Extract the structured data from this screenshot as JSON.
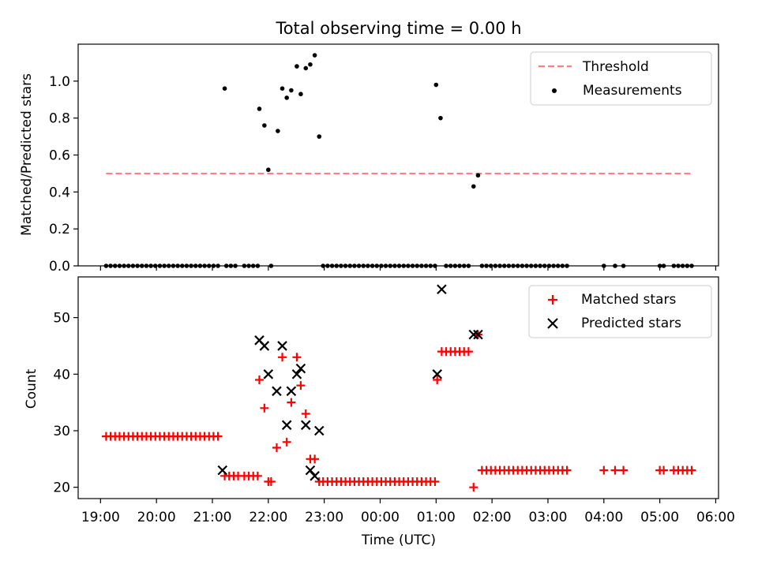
{
  "chart_data": [
    {
      "type": "scatter",
      "title": "Total observing time = 0.00 h",
      "ylabel": "Matched/Predicted stars",
      "xlabel": "",
      "ylim": [
        0,
        1.2
      ],
      "yticks": [
        "0.0",
        "0.2",
        "0.4",
        "0.6",
        "0.8",
        "1.0"
      ],
      "legend_position": "upper-right",
      "series": [
        {
          "name": "Threshold",
          "kind": "line",
          "style": "dashed",
          "color": "#ff7f7f",
          "points": [
            [
              19.1,
              0.5
            ],
            [
              29.55,
              0.5
            ]
          ]
        },
        {
          "name": "Measurements",
          "kind": "scatter",
          "marker": "dot",
          "color": "#000000",
          "points": [
            [
              19.1,
              0
            ],
            [
              19.18,
              0
            ],
            [
              19.26,
              0
            ],
            [
              19.34,
              0
            ],
            [
              19.42,
              0
            ],
            [
              19.5,
              0
            ],
            [
              19.58,
              0
            ],
            [
              19.66,
              0
            ],
            [
              19.74,
              0
            ],
            [
              19.82,
              0
            ],
            [
              19.9,
              0
            ],
            [
              19.98,
              0
            ],
            [
              20.06,
              0
            ],
            [
              20.14,
              0
            ],
            [
              20.22,
              0
            ],
            [
              20.3,
              0
            ],
            [
              20.38,
              0
            ],
            [
              20.46,
              0
            ],
            [
              20.54,
              0
            ],
            [
              20.62,
              0
            ],
            [
              20.7,
              0
            ],
            [
              20.78,
              0
            ],
            [
              20.86,
              0
            ],
            [
              20.94,
              0
            ],
            [
              21.02,
              0
            ],
            [
              21.1,
              0
            ],
            [
              21.22,
              0.96
            ],
            [
              21.25,
              0
            ],
            [
              21.33,
              0
            ],
            [
              21.41,
              0
            ],
            [
              21.57,
              0
            ],
            [
              21.65,
              0
            ],
            [
              21.73,
              0
            ],
            [
              21.81,
              0
            ],
            [
              21.84,
              0.85
            ],
            [
              21.93,
              0.76
            ],
            [
              22.0,
              0.52
            ],
            [
              22.05,
              0
            ],
            [
              22.17,
              0.73
            ],
            [
              22.25,
              0.96
            ],
            [
              22.33,
              0.91
            ],
            [
              22.41,
              0.95
            ],
            [
              22.58,
              0.93
            ],
            [
              22.51,
              1.08
            ],
            [
              22.67,
              1.07
            ],
            [
              22.75,
              1.09
            ],
            [
              22.83,
              1.14
            ],
            [
              22.91,
              0.7
            ],
            [
              22.98,
              0
            ],
            [
              23.06,
              0
            ],
            [
              23.14,
              0
            ],
            [
              23.22,
              0
            ],
            [
              23.3,
              0
            ],
            [
              23.38,
              0
            ],
            [
              23.46,
              0
            ],
            [
              23.54,
              0
            ],
            [
              23.62,
              0
            ],
            [
              23.7,
              0
            ],
            [
              23.78,
              0
            ],
            [
              23.86,
              0
            ],
            [
              23.94,
              0
            ],
            [
              24.02,
              0
            ],
            [
              24.1,
              0
            ],
            [
              24.18,
              0
            ],
            [
              24.26,
              0
            ],
            [
              24.34,
              0
            ],
            [
              24.42,
              0
            ],
            [
              24.5,
              0
            ],
            [
              24.58,
              0
            ],
            [
              24.66,
              0
            ],
            [
              24.74,
              0
            ],
            [
              24.82,
              0
            ],
            [
              24.9,
              0
            ],
            [
              24.98,
              0
            ],
            [
              25.0,
              0.98
            ],
            [
              25.08,
              0.8
            ],
            [
              25.18,
              0
            ],
            [
              25.26,
              0
            ],
            [
              25.34,
              0
            ],
            [
              25.42,
              0
            ],
            [
              25.5,
              0
            ],
            [
              25.58,
              0
            ],
            [
              25.67,
              0.43
            ],
            [
              25.75,
              0.49
            ],
            [
              25.82,
              0
            ],
            [
              25.9,
              0
            ],
            [
              25.98,
              0
            ],
            [
              26.06,
              0
            ],
            [
              26.14,
              0
            ],
            [
              26.22,
              0
            ],
            [
              26.3,
              0
            ],
            [
              26.38,
              0
            ],
            [
              26.46,
              0
            ],
            [
              26.54,
              0
            ],
            [
              26.62,
              0
            ],
            [
              26.7,
              0
            ],
            [
              26.78,
              0
            ],
            [
              26.86,
              0
            ],
            [
              26.94,
              0
            ],
            [
              27.02,
              0
            ],
            [
              27.1,
              0
            ],
            [
              27.18,
              0
            ],
            [
              27.26,
              0
            ],
            [
              27.34,
              0
            ],
            [
              28.0,
              0
            ],
            [
              28.2,
              0
            ],
            [
              28.35,
              0
            ],
            [
              29.0,
              0
            ],
            [
              29.07,
              0
            ],
            [
              29.25,
              0
            ],
            [
              29.33,
              0
            ],
            [
              29.41,
              0
            ],
            [
              29.49,
              0
            ],
            [
              29.57,
              0
            ]
          ]
        }
      ]
    },
    {
      "type": "scatter",
      "xlabel": "Time (UTC)",
      "ylabel": "Count",
      "ylim": [
        18,
        57.2
      ],
      "yticks": [
        "20",
        "30",
        "40",
        "50"
      ],
      "xlim": [
        18.6,
        30.05
      ],
      "xticks": [
        "19:00",
        "20:00",
        "21:00",
        "22:00",
        "23:00",
        "00:00",
        "01:00",
        "02:00",
        "03:00",
        "04:00",
        "05:00",
        "06:00"
      ],
      "legend_position": "upper-right",
      "series": [
        {
          "name": "Matched stars",
          "marker": "plus",
          "color": "#ff0000",
          "points": [
            [
              19.1,
              29
            ],
            [
              19.18,
              29
            ],
            [
              19.26,
              29
            ],
            [
              19.34,
              29
            ],
            [
              19.42,
              29
            ],
            [
              19.5,
              29
            ],
            [
              19.58,
              29
            ],
            [
              19.66,
              29
            ],
            [
              19.74,
              29
            ],
            [
              19.82,
              29
            ],
            [
              19.9,
              29
            ],
            [
              19.98,
              29
            ],
            [
              20.06,
              29
            ],
            [
              20.14,
              29
            ],
            [
              20.22,
              29
            ],
            [
              20.3,
              29
            ],
            [
              20.38,
              29
            ],
            [
              20.46,
              29
            ],
            [
              20.54,
              29
            ],
            [
              20.62,
              29
            ],
            [
              20.7,
              29
            ],
            [
              20.78,
              29
            ],
            [
              20.86,
              29
            ],
            [
              20.94,
              29
            ],
            [
              21.02,
              29
            ],
            [
              21.1,
              29
            ],
            [
              21.22,
              22
            ],
            [
              21.3,
              22
            ],
            [
              21.38,
              22
            ],
            [
              21.46,
              22
            ],
            [
              21.57,
              22
            ],
            [
              21.65,
              22
            ],
            [
              21.73,
              22
            ],
            [
              21.81,
              22
            ],
            [
              21.84,
              39
            ],
            [
              21.93,
              34
            ],
            [
              22.0,
              21
            ],
            [
              22.05,
              21
            ],
            [
              22.15,
              27
            ],
            [
              22.25,
              43
            ],
            [
              22.33,
              28
            ],
            [
              22.41,
              35
            ],
            [
              22.51,
              43
            ],
            [
              22.58,
              38
            ],
            [
              22.67,
              33
            ],
            [
              22.75,
              25
            ],
            [
              22.83,
              25
            ],
            [
              22.91,
              21
            ],
            [
              22.98,
              21
            ],
            [
              23.06,
              21
            ],
            [
              23.14,
              21
            ],
            [
              23.22,
              21
            ],
            [
              23.3,
              21
            ],
            [
              23.38,
              21
            ],
            [
              23.46,
              21
            ],
            [
              23.54,
              21
            ],
            [
              23.62,
              21
            ],
            [
              23.7,
              21
            ],
            [
              23.78,
              21
            ],
            [
              23.86,
              21
            ],
            [
              23.94,
              21
            ],
            [
              24.02,
              21
            ],
            [
              24.1,
              21
            ],
            [
              24.18,
              21
            ],
            [
              24.26,
              21
            ],
            [
              24.34,
              21
            ],
            [
              24.42,
              21
            ],
            [
              24.5,
              21
            ],
            [
              24.58,
              21
            ],
            [
              24.66,
              21
            ],
            [
              24.74,
              21
            ],
            [
              24.82,
              21
            ],
            [
              24.9,
              21
            ],
            [
              24.98,
              21
            ],
            [
              25.02,
              39
            ],
            [
              25.1,
              44
            ],
            [
              25.18,
              44
            ],
            [
              25.26,
              44
            ],
            [
              25.34,
              44
            ],
            [
              25.42,
              44
            ],
            [
              25.5,
              44
            ],
            [
              25.58,
              44
            ],
            [
              25.67,
              20
            ],
            [
              25.75,
              47
            ],
            [
              25.82,
              23
            ],
            [
              25.9,
              23
            ],
            [
              25.98,
              23
            ],
            [
              26.06,
              23
            ],
            [
              26.14,
              23
            ],
            [
              26.22,
              23
            ],
            [
              26.3,
              23
            ],
            [
              26.38,
              23
            ],
            [
              26.46,
              23
            ],
            [
              26.54,
              23
            ],
            [
              26.62,
              23
            ],
            [
              26.7,
              23
            ],
            [
              26.78,
              23
            ],
            [
              26.86,
              23
            ],
            [
              26.94,
              23
            ],
            [
              27.02,
              23
            ],
            [
              27.1,
              23
            ],
            [
              27.18,
              23
            ],
            [
              27.26,
              23
            ],
            [
              27.34,
              23
            ],
            [
              28.0,
              23
            ],
            [
              28.2,
              23
            ],
            [
              28.35,
              23
            ],
            [
              29.0,
              23
            ],
            [
              29.07,
              23
            ],
            [
              29.25,
              23
            ],
            [
              29.33,
              23
            ],
            [
              29.41,
              23
            ],
            [
              29.49,
              23
            ],
            [
              29.57,
              23
            ]
          ]
        },
        {
          "name": "Predicted stars",
          "marker": "x",
          "color": "#000000",
          "points": [
            [
              21.18,
              23
            ],
            [
              21.84,
              46
            ],
            [
              21.93,
              45
            ],
            [
              22.0,
              40
            ],
            [
              22.15,
              37
            ],
            [
              22.25,
              45
            ],
            [
              22.33,
              31
            ],
            [
              22.41,
              37
            ],
            [
              22.51,
              40
            ],
            [
              22.58,
              41
            ],
            [
              22.67,
              31
            ],
            [
              22.75,
              23
            ],
            [
              22.83,
              22
            ],
            [
              22.91,
              30
            ],
            [
              25.02,
              40
            ],
            [
              25.1,
              55
            ],
            [
              25.67,
              47
            ],
            [
              25.75,
              47
            ]
          ]
        }
      ]
    }
  ]
}
